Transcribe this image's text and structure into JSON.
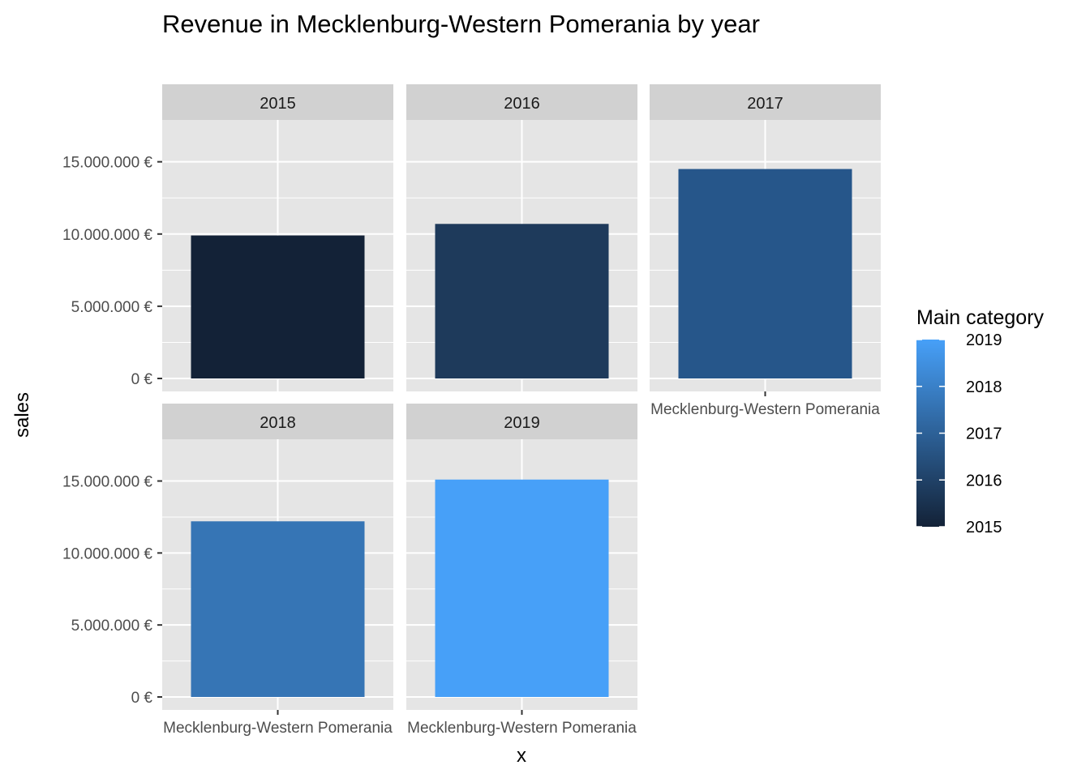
{
  "chart_data": {
    "type": "bar",
    "title": "Revenue in Mecklenburg-Western Pomerania by year",
    "xlabel": "x",
    "ylabel": "sales",
    "category": "Mecklenburg-Western Pomerania",
    "ylim": [
      0,
      17000000
    ],
    "y_ticks": [
      0,
      5000000,
      10000000,
      15000000
    ],
    "y_tick_labels": [
      "0 €",
      "5.000.000 €",
      "10.000.000 €",
      "15.000.000 €"
    ],
    "panels": [
      {
        "facet": "2015",
        "value": 9900000,
        "color": "#132237"
      },
      {
        "facet": "2016",
        "value": 10700000,
        "color": "#1e3a5b"
      },
      {
        "facet": "2017",
        "value": 14500000,
        "color": "#26568a"
      },
      {
        "facet": "2018",
        "value": 12200000,
        "color": "#3675b5"
      },
      {
        "facet": "2019",
        "value": 15100000,
        "color": "#47a0f8"
      }
    ],
    "legend": {
      "title": "Main category",
      "labels": [
        "2019",
        "2018",
        "2017",
        "2016",
        "2015"
      ],
      "color_low": "#132237",
      "color_high": "#47a0f8"
    },
    "colors": {
      "panel_background": "#e5e5e5",
      "strip_background": "#d1d1d1",
      "grid": "#ffffff"
    }
  }
}
